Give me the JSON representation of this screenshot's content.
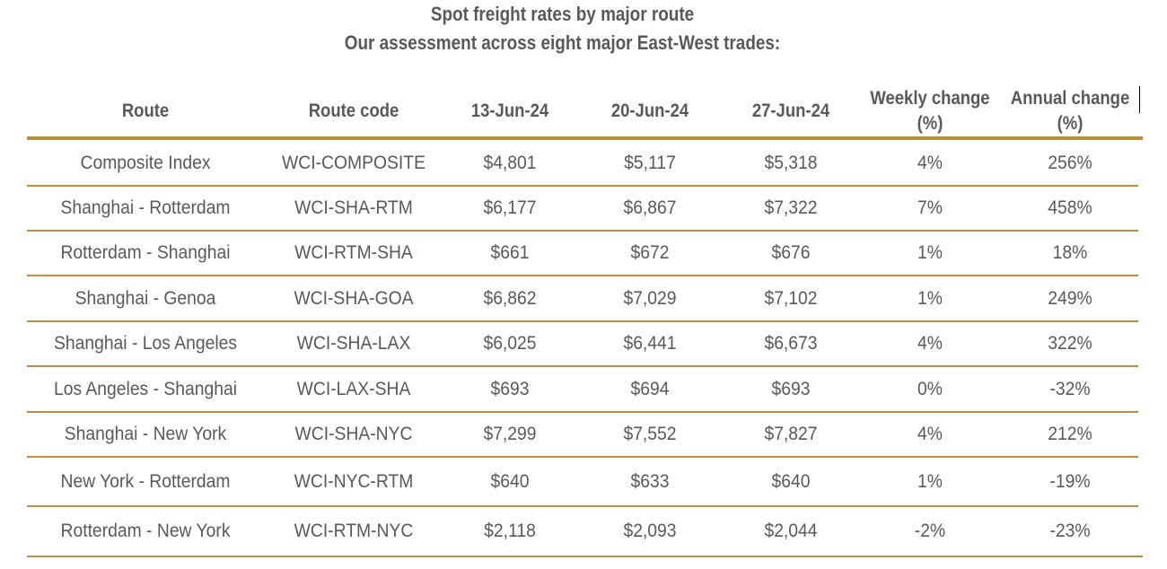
{
  "title": "Spot freight rates by major route",
  "subtitle": "Our assessment across eight major East-West trades:",
  "colors": {
    "rule": "#b8923a",
    "text": "#595959"
  },
  "chart_data": {
    "type": "table",
    "title": "Spot freight rates by major route",
    "subtitle": "Our assessment across eight major East-West trades:",
    "columns": [
      "Route",
      "Route code",
      "13-Jun-24",
      "20-Jun-24",
      "27-Jun-24",
      "Weekly change (%)",
      "Annual change (%)"
    ],
    "rows": [
      [
        "Composite Index",
        "WCI-COMPOSITE",
        "$4,801",
        "$5,117",
        "$5,318",
        "4%",
        "256%"
      ],
      [
        "Shanghai - Rotterdam",
        "WCI-SHA-RTM",
        "$6,177",
        "$6,867",
        "$7,322",
        "7%",
        "458%"
      ],
      [
        "Rotterdam - Shanghai",
        "WCI-RTM-SHA",
        "$661",
        "$672",
        "$676",
        "1%",
        "18%"
      ],
      [
        "Shanghai - Genoa",
        "WCI-SHA-GOA",
        "$6,862",
        "$7,029",
        "$7,102",
        "1%",
        "249%"
      ],
      [
        "Shanghai - Los Angeles",
        "WCI-SHA-LAX",
        "$6,025",
        "$6,441",
        "$6,673",
        "4%",
        "322%"
      ],
      [
        "Los Angeles - Shanghai",
        "WCI-LAX-SHA",
        "$693",
        "$694",
        "$693",
        "0%",
        "-32%"
      ],
      [
        "Shanghai - New York",
        "WCI-SHA-NYC",
        "$7,299",
        "$7,552",
        "$7,827",
        "4%",
        "212%"
      ],
      [
        "New York - Rotterdam",
        "WCI-NYC-RTM",
        "$640",
        "$633",
        "$640",
        "1%",
        "-19%"
      ],
      [
        "Rotterdam - New York",
        "WCI-RTM-NYC",
        "$2,118",
        "$2,093",
        "$2,044",
        "-2%",
        "-23%"
      ]
    ]
  }
}
